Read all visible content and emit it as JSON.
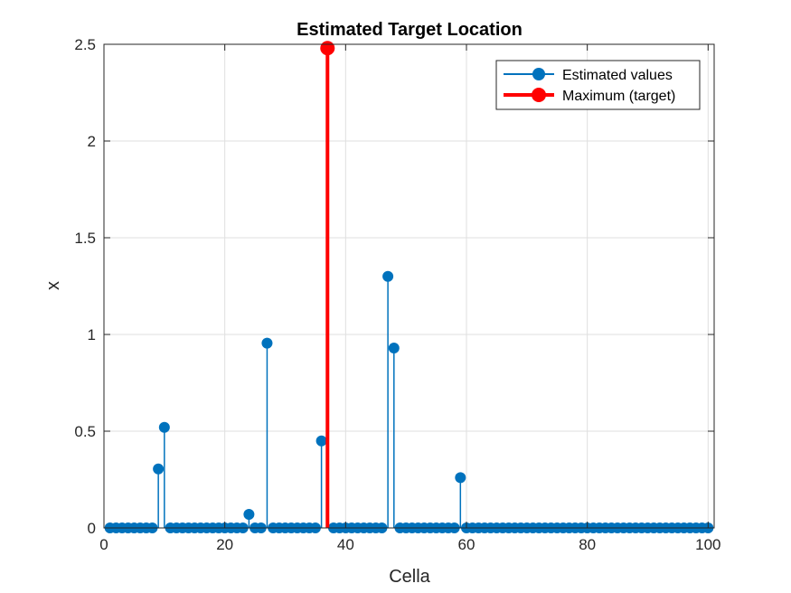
{
  "chart_data": {
    "type": "stem",
    "title": "Estimated Target Location",
    "xlabel": "Cella",
    "ylabel": "x",
    "xlim": [
      0,
      101
    ],
    "ylim": [
      0,
      2.5
    ],
    "xticks": [
      0,
      20,
      40,
      60,
      80,
      100
    ],
    "yticks": [
      0,
      0.5,
      1,
      1.5,
      2,
      2.5
    ],
    "xtick_labels": [
      "0",
      "20",
      "40",
      "60",
      "80",
      "100"
    ],
    "ytick_labels": [
      "0",
      "0.5",
      "1",
      "1.5",
      "2",
      "2.5"
    ],
    "grid": true,
    "legend_position": "top-right",
    "colors": {
      "estimated": "#0072BD",
      "maximum": "#FF0000",
      "grid": "#dfdfdf",
      "axis": "#262626"
    },
    "series": [
      {
        "name": "Estimated values",
        "x": [
          1,
          2,
          3,
          4,
          5,
          6,
          7,
          8,
          9,
          10,
          11,
          12,
          13,
          14,
          15,
          16,
          17,
          18,
          19,
          20,
          21,
          22,
          23,
          24,
          25,
          26,
          27,
          28,
          29,
          30,
          31,
          32,
          33,
          34,
          35,
          36,
          37,
          38,
          39,
          40,
          41,
          42,
          43,
          44,
          45,
          46,
          47,
          48,
          49,
          50,
          51,
          52,
          53,
          54,
          55,
          56,
          57,
          58,
          59,
          60,
          61,
          62,
          63,
          64,
          65,
          66,
          67,
          68,
          69,
          70,
          71,
          72,
          73,
          74,
          75,
          76,
          77,
          78,
          79,
          80,
          81,
          82,
          83,
          84,
          85,
          86,
          87,
          88,
          89,
          90,
          91,
          92,
          93,
          94,
          95,
          96,
          97,
          98,
          99,
          100
        ],
        "values": [
          0,
          0,
          0,
          0,
          0,
          0,
          0,
          0,
          0.305,
          0.52,
          0,
          0,
          0,
          0,
          0,
          0,
          0,
          0,
          0,
          0,
          0,
          0,
          0,
          0.07,
          0,
          0,
          0.955,
          0,
          0,
          0,
          0,
          0,
          0,
          0,
          0,
          0.45,
          2.48,
          0,
          0,
          0,
          0,
          0,
          0,
          0,
          0,
          0,
          1.3,
          0.93,
          0,
          0,
          0,
          0,
          0,
          0,
          0,
          0,
          0,
          0,
          0.26,
          0,
          0,
          0,
          0,
          0,
          0,
          0,
          0,
          0,
          0,
          0,
          0,
          0,
          0,
          0,
          0,
          0,
          0,
          0,
          0,
          0,
          0,
          0,
          0,
          0,
          0,
          0,
          0,
          0,
          0,
          0,
          0,
          0,
          0,
          0,
          0,
          0,
          0,
          0,
          0,
          0
        ]
      },
      {
        "name": "Maximum (target)",
        "x": [
          37
        ],
        "values": [
          2.48
        ]
      }
    ]
  }
}
